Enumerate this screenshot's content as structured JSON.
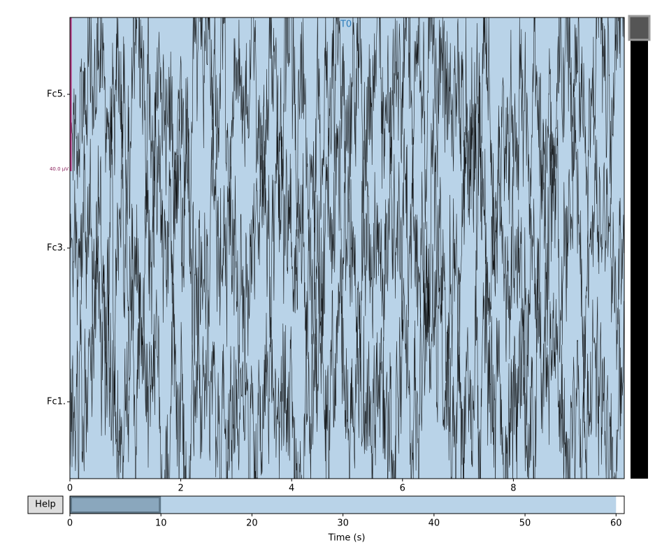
{
  "main_axes": {
    "xlim": [
      0,
      10
    ],
    "xticks": [
      0,
      2,
      4,
      6,
      8
    ],
    "channels": [
      "Fc5.",
      "Fc3.",
      "Fc1."
    ],
    "annotation": "T0",
    "scale_label": "40.0 µV"
  },
  "overview": {
    "xlim": [
      0,
      60.9
    ],
    "xticks": [
      0,
      10,
      20,
      30,
      40,
      50,
      60
    ],
    "xlabel": "Time (s)",
    "view": [
      0,
      10
    ],
    "data_end": 60
  },
  "help_button": "Help"
}
